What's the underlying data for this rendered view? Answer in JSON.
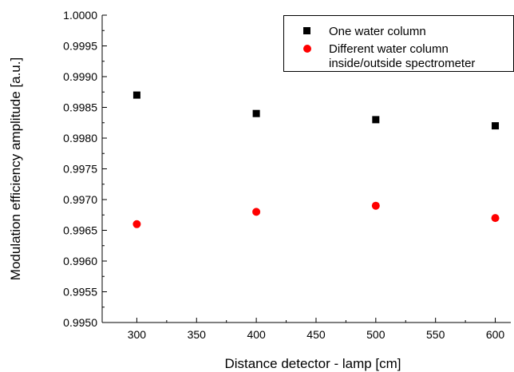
{
  "chart_data": {
    "type": "scatter",
    "xlabel": "Distance detector - lamp [cm]",
    "ylabel": "Modulation efficiency amplitude [a.u.]",
    "xlim": [
      271,
      613
    ],
    "ylim": [
      0.995,
      1.0
    ],
    "x_ticks": [
      "300",
      "350",
      "400",
      "450",
      "500",
      "550",
      "600"
    ],
    "y_ticks": [
      "0.9950",
      "0.9955",
      "0.9960",
      "0.9965",
      "0.9970",
      "0.9975",
      "0.9980",
      "0.9985",
      "0.9990",
      "0.9995",
      "1.0000"
    ],
    "grid": false,
    "legend_position": "top-right",
    "series": [
      {
        "name": "One water column",
        "marker": "square",
        "color": "#000000",
        "x": [
          300,
          400,
          500,
          600
        ],
        "y": [
          0.9987,
          0.9984,
          0.9983,
          0.9982
        ]
      },
      {
        "name": "Different water column\ninside/outside spectrometer",
        "marker": "circle",
        "color": "#ff0000",
        "x": [
          300,
          400,
          500,
          600
        ],
        "y": [
          0.9966,
          0.9968,
          0.9969,
          0.9967
        ]
      }
    ]
  }
}
